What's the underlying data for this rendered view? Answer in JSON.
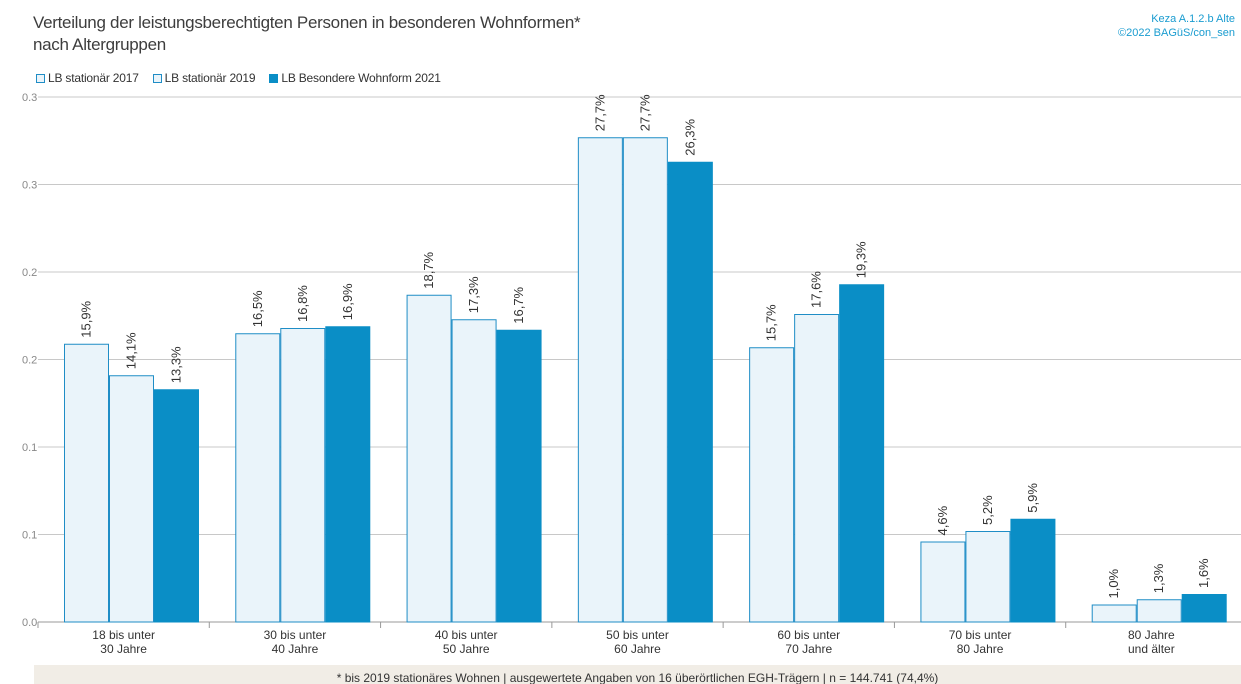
{
  "title": {
    "line1": "Verteilung der leistungsberechtigten Personen in besonderen Wohnformen*",
    "line2": "nach Altergruppen"
  },
  "source": {
    "line1": "Keza A.1.2.b Alte",
    "line2": "©2022 BAGüS/con_sen"
  },
  "footnote": "* bis 2019 stationäres Wohnen | ausgewertete Angaben von 16 überörtlichen EGH-Trägern | n = 144.741 (74,4%)",
  "colors": {
    "series_light_fill": "#eaf4fa",
    "series_light_stroke": "#1f8dc6",
    "series_dark": "#0a8ec6",
    "grid": "#c8c8c8",
    "axis": "#999999",
    "tick_text": "#888888"
  },
  "chart_data": {
    "type": "bar",
    "categories": [
      [
        "18 bis unter",
        "30 Jahre"
      ],
      [
        "30 bis unter",
        "40 Jahre"
      ],
      [
        "40 bis unter",
        "50 Jahre"
      ],
      [
        "50 bis unter",
        "60 Jahre"
      ],
      [
        "60 bis unter",
        "70 Jahre"
      ],
      [
        "70 bis unter",
        "80 Jahre"
      ],
      [
        "80 Jahre",
        "und älter"
      ]
    ],
    "series": [
      {
        "name": "LB stationär 2017",
        "values": [
          0.159,
          0.165,
          0.187,
          0.277,
          0.157,
          0.046,
          0.01
        ],
        "labels": [
          "15,9%",
          "16,5%",
          "18,7%",
          "27,7%",
          "15,7%",
          "4,6%",
          "1,0%"
        ]
      },
      {
        "name": "LB stationär 2019",
        "values": [
          0.141,
          0.168,
          0.173,
          0.277,
          0.176,
          0.052,
          0.013
        ],
        "labels": [
          "14,1%",
          "16,8%",
          "17,3%",
          "27,7%",
          "17,6%",
          "5,2%",
          "1,3%"
        ]
      },
      {
        "name": "LB Besondere Wohnform 2021",
        "values": [
          0.133,
          0.169,
          0.167,
          0.263,
          0.193,
          0.059,
          0.016
        ],
        "labels": [
          "13,3%",
          "16,9%",
          "16,7%",
          "26,3%",
          "19,3%",
          "5,9%",
          "1,6%"
        ]
      }
    ],
    "y_ticks": [
      "0.0",
      "0.1",
      "0.1",
      "0.2",
      "0.2",
      "0.3",
      "0.3"
    ],
    "ylim": [
      0,
      0.3
    ],
    "grid": true,
    "legend_position": "top-left"
  }
}
